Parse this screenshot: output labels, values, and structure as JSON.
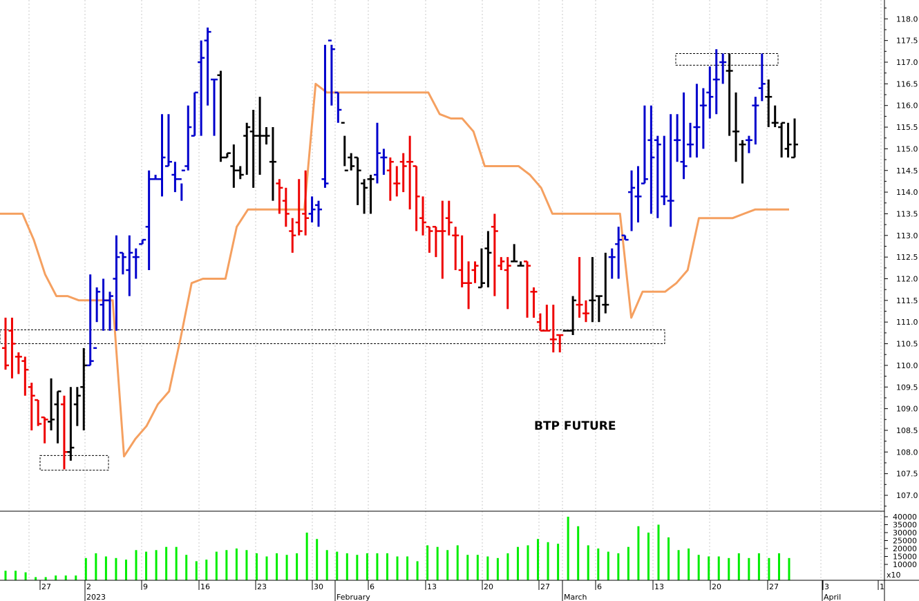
{
  "chart_data": {
    "type": "bar",
    "title": "BTP FUTURE",
    "price_axis": {
      "ylim": [
        106.5,
        118.5
      ],
      "tick_labels": [
        "107.0",
        "107.5",
        "108.0",
        "108.5",
        "109.0",
        "109.5",
        "110.0",
        "110.5",
        "111.0",
        "111.5",
        "112.0",
        "112.5",
        "113.0",
        "113.5",
        "114.0",
        "114.5",
        "115.0",
        "115.5",
        "116.0",
        "116.5",
        "117.0",
        "117.5",
        "118.0"
      ]
    },
    "volume_axis": {
      "ylim": [
        0,
        40000
      ],
      "tick_labels": [
        "10000",
        "15000",
        "20000",
        "25000",
        "30000",
        "35000",
        "40000"
      ],
      "multiplier_label": "x10"
    },
    "grid": "vertical dotted",
    "x_axis": {
      "date_labels": [
        "27",
        "2",
        "9",
        "16",
        "23",
        "30",
        "6",
        "13",
        "20",
        "27",
        "6",
        "13",
        "20",
        "27",
        "3",
        "1"
      ],
      "month_labels": [
        "2023",
        "February",
        "March",
        "April"
      ]
    },
    "colors": {
      "up": "#0000cc",
      "down": "#ee0000",
      "neutral": "#000000",
      "line": "#f5a060",
      "volume": "#00ee00"
    },
    "series": [
      {
        "type": "ohlc",
        "columns": [
          "open",
          "high",
          "low",
          "close",
          "color"
        ],
        "values": [
          [
            110.4,
            111.1,
            109.9,
            110.0,
            "r"
          ],
          [
            110.8,
            111.1,
            109.7,
            110.5,
            "r"
          ],
          [
            110.2,
            110.3,
            109.8,
            110.2,
            "r"
          ],
          [
            110.1,
            110.2,
            109.3,
            109.9,
            "r"
          ],
          [
            109.5,
            109.6,
            108.5,
            109.3,
            "r"
          ],
          [
            109.2,
            109.2,
            108.6,
            108.65,
            "r"
          ],
          [
            108.8,
            108.8,
            108.2,
            108.75,
            "r"
          ],
          [
            108.7,
            109.7,
            108.5,
            108.75,
            "k"
          ],
          [
            109.1,
            109.4,
            108.2,
            109.4,
            "k"
          ],
          [
            109.1,
            109.3,
            107.6,
            108.0,
            "r"
          ],
          [
            108.0,
            109.5,
            107.8,
            108.1,
            "k"
          ],
          [
            109.1,
            109.5,
            108.6,
            109.3,
            "k"
          ],
          [
            109.5,
            110.4,
            108.5,
            110.0,
            "k"
          ],
          [
            110.0,
            112.1,
            110.0,
            110.1,
            "b"
          ],
          [
            110.4,
            111.8,
            111.0,
            111.7,
            "b"
          ],
          [
            111.4,
            112.0,
            110.8,
            111.5,
            "b"
          ],
          [
            111.5,
            111.7,
            110.8,
            111.6,
            "b"
          ],
          [
            112.0,
            113.0,
            110.8,
            112.5,
            "b"
          ],
          [
            112.6,
            112.6,
            112.1,
            112.5,
            "b"
          ],
          [
            112.2,
            113.0,
            111.6,
            112.6,
            "b"
          ],
          [
            112.5,
            112.7,
            112.0,
            112.5,
            "b"
          ],
          [
            112.8,
            112.9,
            112.8,
            112.9,
            "b"
          ],
          [
            113.2,
            114.5,
            112.2,
            114.3,
            "b"
          ],
          [
            114.3,
            114.4,
            114.3,
            114.3,
            "b"
          ],
          [
            114.3,
            115.8,
            113.9,
            114.8,
            "b"
          ],
          [
            114.6,
            115.8,
            114.6,
            114.7,
            "b"
          ],
          [
            114.4,
            114.7,
            114.0,
            114.3,
            "b"
          ],
          [
            114.3,
            114.2,
            113.8,
            114.5,
            "b"
          ],
          [
            114.6,
            116.0,
            114.5,
            115.5,
            "b"
          ],
          [
            115.3,
            116.3,
            115.3,
            116.3,
            "b"
          ],
          [
            117.0,
            117.5,
            115.3,
            117.1,
            "b"
          ],
          [
            117.5,
            117.8,
            116.0,
            117.7,
            "b"
          ],
          [
            116.6,
            116.6,
            115.3,
            116.6,
            "b"
          ],
          [
            116.7,
            116.8,
            114.7,
            114.8,
            "k"
          ],
          [
            114.8,
            114.9,
            114.8,
            114.9,
            "k"
          ],
          [
            114.6,
            115.1,
            114.1,
            114.5,
            "k"
          ],
          [
            114.5,
            114.6,
            114.3,
            114.4,
            "k"
          ],
          [
            115.3,
            115.6,
            114.4,
            115.5,
            "k"
          ],
          [
            115.4,
            115.9,
            114.1,
            115.3,
            "k"
          ],
          [
            115.3,
            116.2,
            114.4,
            115.3,
            "k"
          ],
          [
            115.3,
            115.5,
            115.1,
            115.3,
            "k"
          ],
          [
            114.7,
            115.5,
            113.8,
            114.7,
            "k"
          ],
          [
            114.2,
            114.3,
            113.5,
            114.1,
            "r"
          ],
          [
            113.8,
            114.1,
            113.2,
            113.5,
            "r"
          ],
          [
            113.1,
            113.4,
            112.6,
            113.0,
            "r"
          ],
          [
            113.3,
            114.3,
            113.0,
            113.1,
            "r"
          ],
          [
            113.5,
            114.5,
            113.0,
            113.4,
            "r"
          ],
          [
            113.5,
            113.9,
            113.3,
            113.6,
            "b"
          ],
          [
            113.7,
            113.8,
            113.2,
            113.6,
            "b"
          ],
          [
            114.3,
            117.4,
            114.1,
            114.2,
            "b"
          ],
          [
            117.5,
            117.4,
            116.0,
            117.3,
            "b"
          ],
          [
            116.3,
            116.3,
            115.6,
            115.9,
            "b"
          ],
          [
            115.6,
            115.3,
            114.6,
            114.5,
            "k"
          ],
          [
            114.8,
            114.9,
            114.5,
            114.6,
            "k"
          ],
          [
            114.8,
            114.8,
            113.7,
            114.5,
            "k"
          ],
          [
            114.2,
            114.3,
            113.5,
            114.1,
            "k"
          ],
          [
            114.3,
            114.4,
            113.5,
            114.3,
            "k"
          ],
          [
            114.4,
            115.6,
            114.2,
            114.9,
            "b"
          ],
          [
            114.8,
            115.0,
            114.4,
            114.8,
            "b"
          ],
          [
            114.5,
            114.8,
            113.8,
            114.7,
            "r"
          ],
          [
            114.2,
            114.6,
            113.9,
            114.2,
            "r"
          ],
          [
            114.7,
            114.9,
            114.0,
            114.6,
            "r"
          ],
          [
            114.7,
            115.3,
            113.6,
            114.7,
            "r"
          ],
          [
            114.6,
            114.6,
            113.1,
            113.9,
            "r"
          ],
          [
            113.4,
            113.9,
            113.0,
            113.3,
            "r"
          ],
          [
            113.2,
            113.2,
            112.6,
            113.1,
            "r"
          ],
          [
            113.2,
            113.2,
            112.5,
            113.1,
            "r"
          ],
          [
            113.1,
            113.8,
            112.0,
            113.1,
            "r"
          ],
          [
            113.4,
            113.8,
            113.0,
            113.3,
            "r"
          ],
          [
            113.0,
            113.2,
            112.2,
            113.0,
            "r"
          ],
          [
            112.2,
            113.0,
            111.8,
            111.9,
            "r"
          ],
          [
            111.9,
            112.4,
            111.3,
            111.9,
            "r"
          ],
          [
            112.2,
            112.4,
            111.9,
            112.3,
            "r"
          ],
          [
            111.8,
            112.7,
            111.8,
            111.9,
            "k"
          ],
          [
            112.7,
            113.1,
            111.8,
            112.6,
            "k"
          ],
          [
            113.2,
            113.5,
            111.6,
            113.1,
            "r"
          ],
          [
            112.3,
            112.5,
            112.2,
            112.4,
            "r"
          ],
          [
            112.2,
            112.5,
            111.3,
            112.3,
            "r"
          ],
          [
            112.4,
            112.8,
            112.4,
            112.4,
            "k"
          ],
          [
            112.3,
            112.4,
            112.3,
            112.3,
            "k"
          ],
          [
            112.4,
            112.4,
            111.1,
            112.3,
            "r"
          ],
          [
            111.7,
            111.8,
            111.1,
            111.7,
            "r"
          ],
          [
            111.0,
            111.2,
            110.8,
            110.8,
            "r"
          ],
          [
            110.8,
            111.4,
            110.8,
            110.8,
            "r"
          ],
          [
            110.6,
            111.4,
            110.3,
            110.6,
            "r"
          ],
          [
            110.7,
            110.7,
            110.3,
            110.7,
            "r"
          ],
          [
            110.8,
            110.8,
            110.8,
            110.8,
            "k"
          ],
          [
            110.8,
            111.6,
            110.7,
            111.5,
            "k"
          ],
          [
            111.4,
            112.5,
            111.1,
            111.4,
            "r"
          ],
          [
            111.2,
            111.5,
            111.0,
            111.2,
            "r"
          ],
          [
            111.5,
            112.5,
            111.0,
            111.5,
            "k"
          ],
          [
            111.6,
            111.6,
            111.0,
            111.6,
            "k"
          ],
          [
            111.4,
            112.6,
            111.2,
            111.4,
            "k"
          ],
          [
            112.5,
            112.7,
            112.0,
            112.5,
            "b"
          ],
          [
            112.8,
            113.2,
            112.0,
            112.9,
            "b"
          ],
          [
            113.0,
            113.0,
            112.9,
            112.9,
            "b"
          ],
          [
            114.0,
            114.5,
            113.1,
            114.1,
            "b"
          ],
          [
            113.9,
            114.6,
            113.3,
            113.9,
            "b"
          ],
          [
            114.2,
            116.0,
            114.2,
            114.3,
            "b"
          ],
          [
            115.2,
            116.0,
            113.5,
            114.8,
            "b"
          ],
          [
            115.2,
            115.3,
            113.4,
            115.1,
            "b"
          ],
          [
            113.9,
            115.3,
            113.7,
            113.9,
            "b"
          ],
          [
            113.8,
            115.8,
            113.2,
            113.8,
            "b"
          ],
          [
            115.2,
            115.8,
            114.7,
            115.2,
            "b"
          ],
          [
            114.7,
            116.3,
            114.3,
            114.6,
            "b"
          ],
          [
            115.1,
            115.6,
            114.8,
            115.1,
            "b"
          ],
          [
            115.5,
            116.5,
            114.8,
            115.5,
            "b"
          ],
          [
            116.0,
            116.4,
            115.0,
            116.0,
            "b"
          ],
          [
            116.3,
            116.9,
            115.7,
            116.2,
            "b"
          ],
          [
            116.6,
            117.3,
            115.8,
            116.6,
            "b"
          ],
          [
            117.0,
            117.2,
            116.5,
            117.0,
            "b"
          ],
          [
            116.8,
            117.2,
            115.3,
            116.8,
            "k"
          ],
          [
            115.4,
            116.3,
            114.7,
            115.4,
            "k"
          ],
          [
            115.1,
            115.2,
            114.2,
            115.1,
            "k"
          ],
          [
            115.2,
            115.3,
            114.9,
            115.2,
            "b"
          ],
          [
            116.0,
            116.2,
            115.1,
            116.0,
            "b"
          ],
          [
            116.4,
            117.2,
            116.1,
            116.5,
            "b"
          ],
          [
            116.2,
            116.6,
            115.5,
            116.2,
            "k"
          ],
          [
            115.6,
            116.0,
            115.5,
            115.6,
            "k"
          ],
          [
            115.5,
            115.6,
            114.8,
            115.6,
            "k"
          ],
          [
            115.0,
            115.6,
            114.8,
            115.1,
            "k"
          ],
          [
            114.8,
            115.7,
            114.8,
            115.1,
            "k"
          ]
        ]
      },
      {
        "name": "",
        "type": "line",
        "values": [
          113.5,
          113.5,
          113.5,
          112.9,
          112.1,
          111.6,
          111.6,
          111.5,
          111.5,
          111.5,
          111.5,
          107.9,
          108.3,
          108.6,
          109.1,
          109.4,
          110.6,
          111.9,
          112.0,
          112.0,
          112.0,
          113.2,
          113.6,
          113.6,
          113.6,
          113.6,
          113.6,
          113.6,
          116.5,
          116.3,
          116.3,
          116.3,
          116.3,
          116.3,
          116.3,
          116.3,
          116.3,
          116.3,
          116.3,
          115.8,
          115.7,
          115.7,
          115.4,
          114.6,
          114.6,
          114.6,
          114.6,
          114.4,
          114.1,
          113.5,
          113.5,
          113.5,
          113.5,
          113.5,
          113.5,
          113.5,
          111.1,
          111.7,
          111.7,
          111.7,
          111.9,
          112.2,
          113.4,
          113.4,
          113.4,
          113.4,
          113.5,
          113.6,
          113.6,
          113.6,
          113.6
        ]
      }
    ],
    "volume": {
      "type": "bar",
      "values": [
        6000,
        6000,
        5000,
        2000,
        2000,
        3000,
        3000,
        3000,
        14000,
        17000,
        15000,
        14000,
        13000,
        19000,
        18000,
        19000,
        21000,
        21000,
        16000,
        12000,
        13000,
        18000,
        19000,
        20000,
        19000,
        17000,
        15000,
        17000,
        16000,
        17000,
        30000,
        26000,
        19000,
        18000,
        17000,
        16000,
        17000,
        17000,
        17000,
        15000,
        15000,
        12000,
        22000,
        21000,
        19000,
        22000,
        16000,
        16000,
        15000,
        14000,
        17000,
        21000,
        22000,
        26000,
        24000,
        23000,
        40000,
        34000,
        22000,
        20000,
        18000,
        17000,
        21000,
        34000,
        30000,
        35000,
        27000,
        19000,
        20000,
        16000,
        15000,
        15000,
        14000,
        17000,
        14000,
        17000,
        14000,
        17000,
        14000
      ]
    }
  },
  "annotations": {
    "dashed_boxes": [
      {
        "x_date": "Dec-26",
        "note": "low box"
      },
      {
        "x_date": "Jan-01",
        "note": "horizontal band"
      },
      {
        "x_date": "Feb-20",
        "note": "top box"
      }
    ]
  }
}
